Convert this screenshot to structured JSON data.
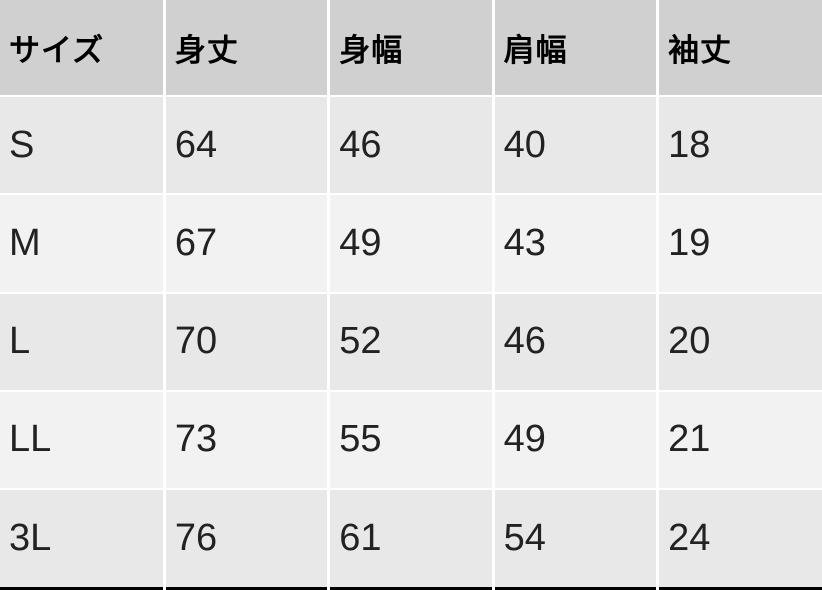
{
  "chart_data": {
    "type": "table",
    "columns": [
      "サイズ",
      "身丈",
      "身幅",
      "肩幅",
      "袖丈"
    ],
    "rows": [
      [
        "S",
        "64",
        "46",
        "40",
        "18"
      ],
      [
        "M",
        "67",
        "49",
        "43",
        "19"
      ],
      [
        "L",
        "70",
        "52",
        "46",
        "20"
      ],
      [
        "LL",
        "73",
        "55",
        "49",
        "21"
      ],
      [
        "3L",
        "76",
        "61",
        "54",
        "24"
      ]
    ]
  },
  "colors": {
    "header_bg": "#d0d0d0",
    "header_text": "#000000",
    "row_odd_bg": "#e8e8e8",
    "row_even_bg": "#f2f2f2",
    "body_text": "#222222",
    "separator": "#ffffff",
    "border_bottom": "#000000"
  }
}
